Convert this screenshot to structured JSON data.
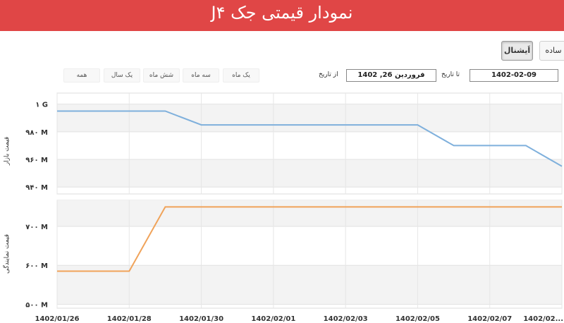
{
  "header": {
    "title": "نمودار قیمتی جک J۴"
  },
  "view_modes": {
    "simple": "ساده",
    "advanced": "اَیشنال"
  },
  "ranges": [
    "یک ماه",
    "سه ماه",
    "شش ماه",
    "یک سال",
    "همه"
  ],
  "date_filter": {
    "from_label": "از تاریخ",
    "from_value": "فروردین 26, 1402",
    "to_label": "تا تاریخ",
    "to_value": "1402-02-09"
  },
  "colors": {
    "header": "#e04646",
    "market": "#7fb0dc",
    "representative": "#f0a35a"
  },
  "chart_data": [
    {
      "type": "line",
      "ylabel": "قیمت بازار",
      "yticks": [
        "۹۴۰ M",
        "۹۶۰ M",
        "۹۸۰ M",
        "۱ G"
      ],
      "ylim": [
        935,
        1008
      ],
      "x": [
        "1402/01/26",
        "1402/01/27",
        "1402/01/28",
        "1402/01/29",
        "1402/01/30",
        "1402/01/31",
        "1402/02/01",
        "1402/02/02",
        "1402/02/03",
        "1402/02/04",
        "1402/02/05",
        "1402/02/06",
        "1402/02/07",
        "1402/02/08",
        "1402/02/09"
      ],
      "series": [
        {
          "values": [
            995,
            995,
            995,
            995,
            985,
            985,
            985,
            985,
            985,
            985,
            985,
            970,
            970,
            970,
            955
          ]
        }
      ]
    },
    {
      "type": "line",
      "ylabel": "قیمت نمایندگی",
      "yticks": [
        "۵۰۰ M",
        "۶۰۰ M",
        "۷۰۰ M"
      ],
      "ylim": [
        490,
        767
      ],
      "x": [
        "1402/01/26",
        "1402/01/27",
        "1402/01/28",
        "1402/01/29",
        "1402/01/30",
        "1402/01/31",
        "1402/02/01",
        "1402/02/02",
        "1402/02/03",
        "1402/02/04",
        "1402/02/05",
        "1402/02/06",
        "1402/02/07",
        "1402/02/08",
        "1402/02/09"
      ],
      "series": [
        {
          "values": [
            585,
            585,
            585,
            750,
            750,
            750,
            750,
            750,
            750,
            750,
            750,
            750,
            750,
            750,
            750
          ]
        }
      ]
    }
  ],
  "x_tick_labels": [
    "1402/01/26",
    "1402/01/28",
    "1402/01/30",
    "1402/02/01",
    "1402/02/03",
    "1402/02/05",
    "1402/02/07",
    "1402/02..."
  ]
}
